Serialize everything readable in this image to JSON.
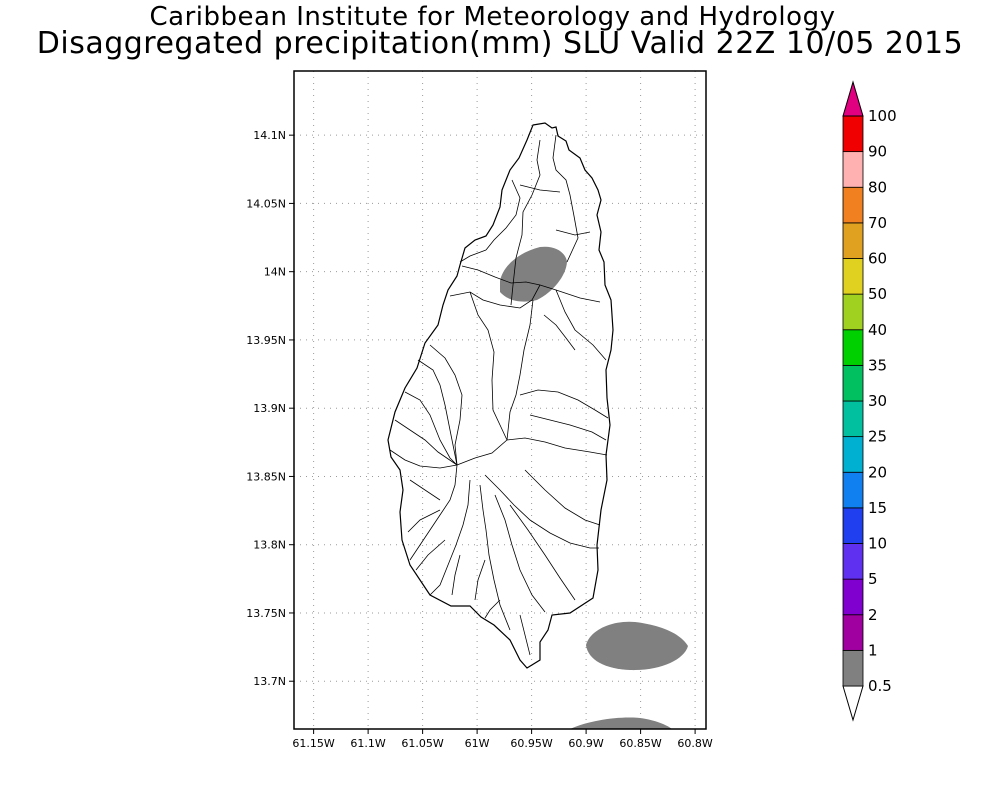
{
  "title": {
    "line1": "Caribbean Institute for Meteorology and Hydrology",
    "line2": "Disaggregated precipitation(mm) SLU Valid 22Z 10/05 2015"
  },
  "map": {
    "lon_range": [
      -61.168,
      -60.79
    ],
    "lat_range": [
      13.665,
      14.147
    ],
    "x_ticks": [
      {
        "value": -61.15,
        "label": "61.15W"
      },
      {
        "value": -61.1,
        "label": "61.1W"
      },
      {
        "value": -61.05,
        "label": "61.05W"
      },
      {
        "value": -61.0,
        "label": "61W"
      },
      {
        "value": -60.95,
        "label": "60.95W"
      },
      {
        "value": -60.9,
        "label": "60.9W"
      },
      {
        "value": -60.85,
        "label": "60.85W"
      },
      {
        "value": -60.8,
        "label": "60.8W"
      }
    ],
    "y_ticks": [
      {
        "value": 14.1,
        "label": "14.1N"
      },
      {
        "value": 14.05,
        "label": "14.05N"
      },
      {
        "value": 14.0,
        "label": "14N"
      },
      {
        "value": 13.95,
        "label": "13.95N"
      },
      {
        "value": 13.9,
        "label": "13.9N"
      },
      {
        "value": 13.85,
        "label": "13.85N"
      },
      {
        "value": 13.8,
        "label": "13.8N"
      },
      {
        "value": 13.75,
        "label": "13.75N"
      },
      {
        "value": 13.7,
        "label": "13.7N"
      }
    ],
    "grid": true,
    "precip_color": "#808080"
  },
  "colorbar": {
    "labels": [
      "0.5",
      "1",
      "2",
      "5",
      "10",
      "15",
      "20",
      "25",
      "30",
      "35",
      "40",
      "50",
      "60",
      "70",
      "80",
      "90",
      "100"
    ],
    "colors": [
      "#808080",
      "#a000a0",
      "#8000d0",
      "#6030f0",
      "#2040f0",
      "#1080f0",
      "#00b0d0",
      "#00c0a0",
      "#00c060",
      "#00d000",
      "#a0d020",
      "#e0d020",
      "#e0a020",
      "#f08020",
      "#ffb0b0",
      "#f00000",
      "#f04040"
    ],
    "overflow_color": "#e00080"
  }
}
